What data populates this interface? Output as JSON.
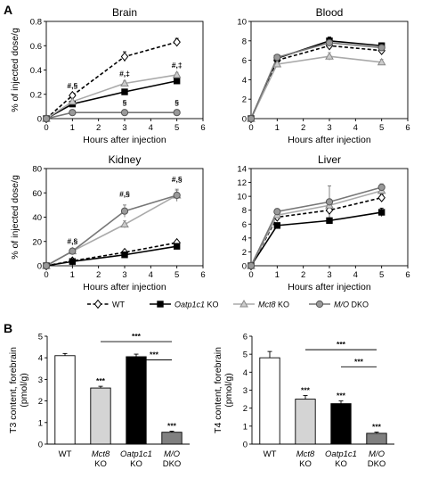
{
  "panel_labels": [
    "A",
    "B"
  ],
  "legend": [
    {
      "label_parts": [
        {
          "t": "WT",
          "i": false
        }
      ],
      "color": "#000000",
      "dash": true,
      "marker": "diamond",
      "fill": "#ffffff"
    },
    {
      "label_parts": [
        {
          "t": "Oatp1c1",
          "i": true
        },
        {
          "t": " KO",
          "i": false
        }
      ],
      "color": "#000000",
      "dash": false,
      "marker": "square",
      "fill": "#000000"
    },
    {
      "label_parts": [
        {
          "t": "Mct8",
          "i": true
        },
        {
          "t": " KO",
          "i": false
        }
      ],
      "color": "#aaaaaa",
      "dash": false,
      "marker": "triangle",
      "fill": "#cccccc"
    },
    {
      "label_parts": [
        {
          "t": "M/O",
          "i": true
        },
        {
          "t": " DKO",
          "i": false
        }
      ],
      "color": "#777777",
      "dash": false,
      "marker": "circle",
      "fill": "#999999"
    }
  ],
  "chart_data": [
    {
      "type": "line",
      "title": "Brain",
      "xlabel": "Hours after injection",
      "ylabel": "% of injected dose/g",
      "xlim": [
        0,
        6
      ],
      "xticks": [
        0,
        1,
        2,
        3,
        4,
        5,
        6
      ],
      "ylim": [
        0,
        0.8
      ],
      "yticks": [
        0,
        0.2,
        0.4,
        0.6,
        0.8
      ],
      "ytick_labels": [
        "0",
        "0.2",
        "0.4",
        "0.6",
        "0.8"
      ],
      "x": [
        0,
        1,
        3,
        5
      ],
      "series": [
        {
          "name": "WT",
          "values": [
            0,
            0.19,
            0.51,
            0.63
          ],
          "err": [
            0,
            0.02,
            0.04,
            0.03
          ],
          "color": "#000000",
          "dash": true,
          "marker": "diamond",
          "fill": "#ffffff"
        },
        {
          "name": "Oatp1c1 KO",
          "values": [
            0,
            0.12,
            0.22,
            0.31
          ],
          "err": [
            0,
            0.01,
            0.01,
            0.02
          ],
          "color": "#000000",
          "dash": false,
          "marker": "square",
          "fill": "#000000"
        },
        {
          "name": "Mct8 KO",
          "values": [
            0,
            0.14,
            0.29,
            0.36
          ],
          "err": [
            0,
            0.01,
            0.02,
            0.02
          ],
          "color": "#aaaaaa",
          "dash": false,
          "marker": "triangle",
          "fill": "#cccccc"
        },
        {
          "name": "M/O DKO",
          "values": [
            0,
            0.05,
            0.05,
            0.05
          ],
          "err": [
            0,
            0.005,
            0.005,
            0.005
          ],
          "color": "#777777",
          "dash": false,
          "marker": "circle",
          "fill": "#999999"
        }
      ],
      "annotations": [
        {
          "x": 1,
          "y": 0.25,
          "text": "#,§"
        },
        {
          "x": 3,
          "y": 0.35,
          "text": "#,‡"
        },
        {
          "x": 5,
          "y": 0.42,
          "text": "#,‡"
        },
        {
          "x": 3,
          "y": 0.11,
          "text": "§"
        },
        {
          "x": 5,
          "y": 0.11,
          "text": "§"
        }
      ]
    },
    {
      "type": "line",
      "title": "Blood",
      "xlabel": "Hours after injection",
      "ylabel": "",
      "xlim": [
        0,
        6
      ],
      "xticks": [
        0,
        1,
        2,
        3,
        4,
        5,
        6
      ],
      "ylim": [
        0,
        10
      ],
      "yticks": [
        0,
        2,
        4,
        6,
        8,
        10
      ],
      "ytick_labels": [
        "0",
        "2",
        "4",
        "6",
        "8",
        "10"
      ],
      "x": [
        0,
        1,
        3,
        5
      ],
      "series": [
        {
          "name": "WT",
          "values": [
            0,
            6.0,
            7.5,
            7.0
          ],
          "err": [
            0,
            0.3,
            0.3,
            0.3
          ],
          "color": "#000000",
          "dash": true,
          "marker": "diamond",
          "fill": "#ffffff"
        },
        {
          "name": "Oatp1c1 KO",
          "values": [
            0,
            6.2,
            8.0,
            7.5
          ],
          "err": [
            0,
            0.3,
            0.4,
            0.3
          ],
          "color": "#000000",
          "dash": false,
          "marker": "square",
          "fill": "#000000"
        },
        {
          "name": "Mct8 KO",
          "values": [
            0,
            5.6,
            6.4,
            5.8
          ],
          "err": [
            0,
            0.3,
            0.4,
            0.3
          ],
          "color": "#aaaaaa",
          "dash": false,
          "marker": "triangle",
          "fill": "#cccccc"
        },
        {
          "name": "M/O DKO",
          "values": [
            0,
            6.3,
            7.8,
            7.3
          ],
          "err": [
            0,
            0.3,
            0.3,
            0.3
          ],
          "color": "#777777",
          "dash": false,
          "marker": "circle",
          "fill": "#999999"
        }
      ],
      "annotations": []
    },
    {
      "type": "line",
      "title": "Kidney",
      "xlabel": "Hours after injection",
      "ylabel": "% of injected dose/g",
      "xlim": [
        0,
        6
      ],
      "xticks": [
        0,
        1,
        2,
        3,
        4,
        5,
        6
      ],
      "ylim": [
        0,
        80
      ],
      "yticks": [
        0,
        20,
        40,
        60,
        80
      ],
      "ytick_labels": [
        "0",
        "20",
        "40",
        "60",
        "80"
      ],
      "x": [
        0,
        1,
        3,
        5
      ],
      "series": [
        {
          "name": "WT",
          "values": [
            0,
            4,
            11,
            19
          ],
          "err": [
            0,
            0.5,
            1,
            1
          ],
          "color": "#000000",
          "dash": true,
          "marker": "diamond",
          "fill": "#ffffff"
        },
        {
          "name": "Oatp1c1 KO",
          "values": [
            0,
            3.5,
            9,
            16
          ],
          "err": [
            0,
            0.5,
            1,
            1
          ],
          "color": "#000000",
          "dash": false,
          "marker": "square",
          "fill": "#000000"
        },
        {
          "name": "Mct8 KO",
          "values": [
            0,
            12,
            34,
            58
          ],
          "err": [
            0,
            1,
            3,
            4
          ],
          "color": "#aaaaaa",
          "dash": false,
          "marker": "triangle",
          "fill": "#cccccc"
        },
        {
          "name": "M/O DKO",
          "values": [
            0,
            12,
            45,
            58
          ],
          "err": [
            0,
            1,
            5,
            5
          ],
          "color": "#777777",
          "dash": false,
          "marker": "circle",
          "fill": "#999999"
        }
      ],
      "annotations": [
        {
          "x": 1,
          "y": 18,
          "text": "#,§"
        },
        {
          "x": 3,
          "y": 57,
          "text": "#,§"
        },
        {
          "x": 5,
          "y": 69,
          "text": "#,§"
        }
      ]
    },
    {
      "type": "line",
      "title": "Liver",
      "xlabel": "Hours after injection",
      "ylabel": "",
      "xlim": [
        0,
        6
      ],
      "xticks": [
        0,
        1,
        2,
        3,
        4,
        5,
        6
      ],
      "ylim": [
        0,
        14
      ],
      "yticks": [
        0,
        2,
        4,
        6,
        8,
        10,
        12,
        14
      ],
      "ytick_labels": [
        "0",
        "2",
        "4",
        "6",
        "8",
        "10",
        "12",
        "14"
      ],
      "x": [
        0,
        1,
        3,
        5
      ],
      "series": [
        {
          "name": "WT",
          "values": [
            0,
            7.0,
            8.0,
            9.8
          ],
          "err": [
            0,
            0.4,
            1.0,
            0.5
          ],
          "color": "#000000",
          "dash": true,
          "marker": "diamond",
          "fill": "#ffffff"
        },
        {
          "name": "Oatp1c1 KO",
          "values": [
            0,
            5.8,
            6.5,
            7.7
          ],
          "err": [
            0,
            0.3,
            0.4,
            0.6
          ],
          "color": "#000000",
          "dash": false,
          "marker": "square",
          "fill": "#000000"
        },
        {
          "name": "Mct8 KO",
          "values": [
            0,
            7.3,
            8.7,
            10.8
          ],
          "err": [
            0,
            0.4,
            0.8,
            0.6
          ],
          "color": "#aaaaaa",
          "dash": false,
          "marker": "triangle",
          "fill": "#cccccc"
        },
        {
          "name": "M/O DKO",
          "values": [
            0,
            7.8,
            9.2,
            11.3
          ],
          "err": [
            0,
            0.4,
            2.3,
            0.5
          ],
          "color": "#777777",
          "dash": false,
          "marker": "circle",
          "fill": "#999999"
        }
      ],
      "annotations": []
    },
    {
      "type": "bar",
      "title": "",
      "ylabel_lines": [
        "T3 content, forebrain",
        "(pmol/g)"
      ],
      "ylim": [
        0,
        5
      ],
      "yticks": [
        0,
        1,
        2,
        3,
        4,
        5
      ],
      "ytick_labels": [
        "0",
        "1",
        "2",
        "3",
        "4",
        "5"
      ],
      "categories": [
        [
          {
            "t": "WT",
            "i": false
          }
        ],
        [
          {
            "t": "Mct8",
            "i": true
          },
          {
            "t": "KO",
            "i": false
          }
        ],
        [
          {
            "t": "Oatp1c1",
            "i": true
          },
          {
            "t": "KO",
            "i": false
          }
        ],
        [
          {
            "t": "M/O",
            "i": true
          },
          {
            "t": "DKO",
            "i": false
          }
        ]
      ],
      "values": [
        4.1,
        2.6,
        4.05,
        0.55
      ],
      "err": [
        0.1,
        0.08,
        0.12,
        0.05
      ],
      "fills": [
        "#ffffff",
        "#d4d4d4",
        "#000000",
        "#808080"
      ],
      "bar_annotations": [
        "",
        "***",
        "",
        "***"
      ],
      "brackets": [
        {
          "from": 1,
          "to": 3,
          "y": 4.75,
          "text": "***"
        },
        {
          "from": 2,
          "to": 3,
          "y": 3.9,
          "text": "***"
        }
      ]
    },
    {
      "type": "bar",
      "title": "",
      "ylabel_lines": [
        "T4 content, forebrain",
        "(pmol/g)"
      ],
      "ylim": [
        0,
        6
      ],
      "yticks": [
        0,
        1,
        2,
        3,
        4,
        5,
        6
      ],
      "ytick_labels": [
        "0",
        "1",
        "2",
        "3",
        "4",
        "5",
        "6"
      ],
      "categories": [
        [
          {
            "t": "WT",
            "i": false
          }
        ],
        [
          {
            "t": "Mct8",
            "i": true
          },
          {
            "t": "KO",
            "i": false
          }
        ],
        [
          {
            "t": "Oatp1c1",
            "i": true
          },
          {
            "t": "KO",
            "i": false
          }
        ],
        [
          {
            "t": "M/O",
            "i": true
          },
          {
            "t": "DKO",
            "i": false
          }
        ]
      ],
      "values": [
        4.8,
        2.5,
        2.25,
        0.6
      ],
      "err": [
        0.35,
        0.2,
        0.15,
        0.07
      ],
      "fills": [
        "#ffffff",
        "#d4d4d4",
        "#000000",
        "#808080"
      ],
      "bar_annotations": [
        "",
        "***",
        "***",
        "***"
      ],
      "brackets": [
        {
          "from": 1,
          "to": 3,
          "y": 5.25,
          "text": "***"
        },
        {
          "from": 2,
          "to": 3,
          "y": 4.3,
          "text": "***"
        }
      ]
    }
  ]
}
